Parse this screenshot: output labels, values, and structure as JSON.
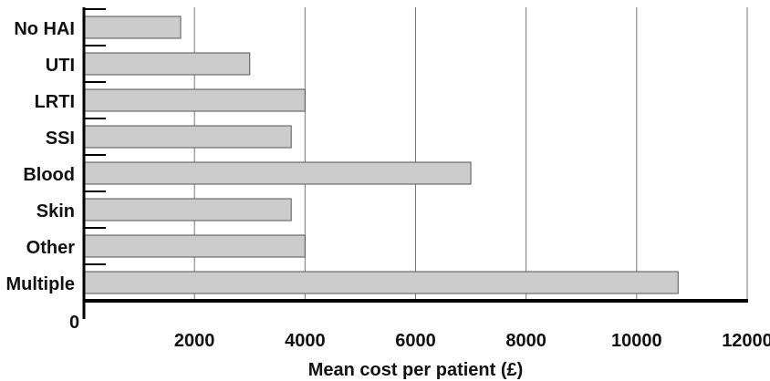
{
  "chart_data": {
    "type": "bar",
    "orientation": "horizontal",
    "categories": [
      "No HAI",
      "UTI",
      "LRTI",
      "SSI",
      "Blood",
      "Skin",
      "Other",
      "Multiple"
    ],
    "values": [
      1750,
      3000,
      4000,
      3750,
      7000,
      3750,
      4000,
      10750
    ],
    "xlabel": "Mean cost per patient (£)",
    "ylabel": "",
    "xlim": [
      0,
      12000
    ],
    "xticks": [
      2000,
      4000,
      6000,
      8000,
      10000,
      12000
    ],
    "origin_label": "0",
    "grid": "vertical",
    "bar_color": "#cccccc",
    "bar_edge_color": "#555555",
    "axis_color": "#000000"
  }
}
